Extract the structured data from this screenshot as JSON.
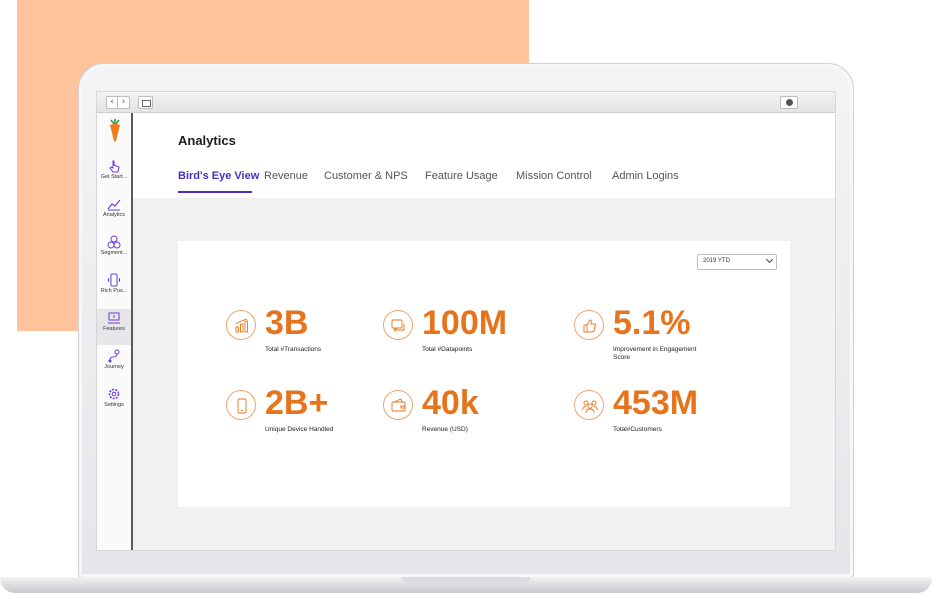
{
  "colors": {
    "accent": "#4b2ec0",
    "stat": "#e7741c",
    "peach": "#fec39b",
    "sidebar_icon": "#6b3fd6"
  },
  "browser": {
    "back_icon": "chevron-left-icon",
    "forward_icon": "chevron-right-icon",
    "back_glyph": "‹",
    "forward_glyph": "›"
  },
  "sidebar": {
    "logo": "carrot-logo",
    "items": [
      {
        "label": "Get Start...",
        "icon": "pointer-click-icon"
      },
      {
        "label": "Analytics",
        "icon": "line-chart-icon"
      },
      {
        "label": "Segment...",
        "icon": "segments-icon"
      },
      {
        "label": "Rich Pus...",
        "icon": "mobile-push-icon"
      },
      {
        "label": "Features",
        "icon": "features-icon"
      },
      {
        "label": "Journey",
        "icon": "journey-icon"
      },
      {
        "label": "Settings",
        "icon": "gear-icon"
      }
    ]
  },
  "header": {
    "title": "Analytics"
  },
  "tabs": [
    {
      "label": "Bird's Eye View",
      "active": true
    },
    {
      "label": "Revenue"
    },
    {
      "label": "Customer & NPS"
    },
    {
      "label": "Feature Usage"
    },
    {
      "label": "Mission Control"
    },
    {
      "label": "Admin Logins"
    }
  ],
  "filter": {
    "selected": "2019 YTD"
  },
  "stats": [
    {
      "value": "3B",
      "label": "Total #Transactions",
      "icon": "bar-chart-icon"
    },
    {
      "value": "100M",
      "label": "Total #Datapoints",
      "icon": "chat-icon"
    },
    {
      "value": "5.1%",
      "label": "Improvement in Engagement Score",
      "icon": "thumbs-up-icon"
    },
    {
      "value": "2B+",
      "label": "Unique Device Handled",
      "icon": "mobile-icon"
    },
    {
      "value": "40k",
      "label": "Revenue (USD)",
      "icon": "wallet-icon"
    },
    {
      "value": "453M",
      "label": "Total#Customers",
      "icon": "users-icon"
    }
  ]
}
